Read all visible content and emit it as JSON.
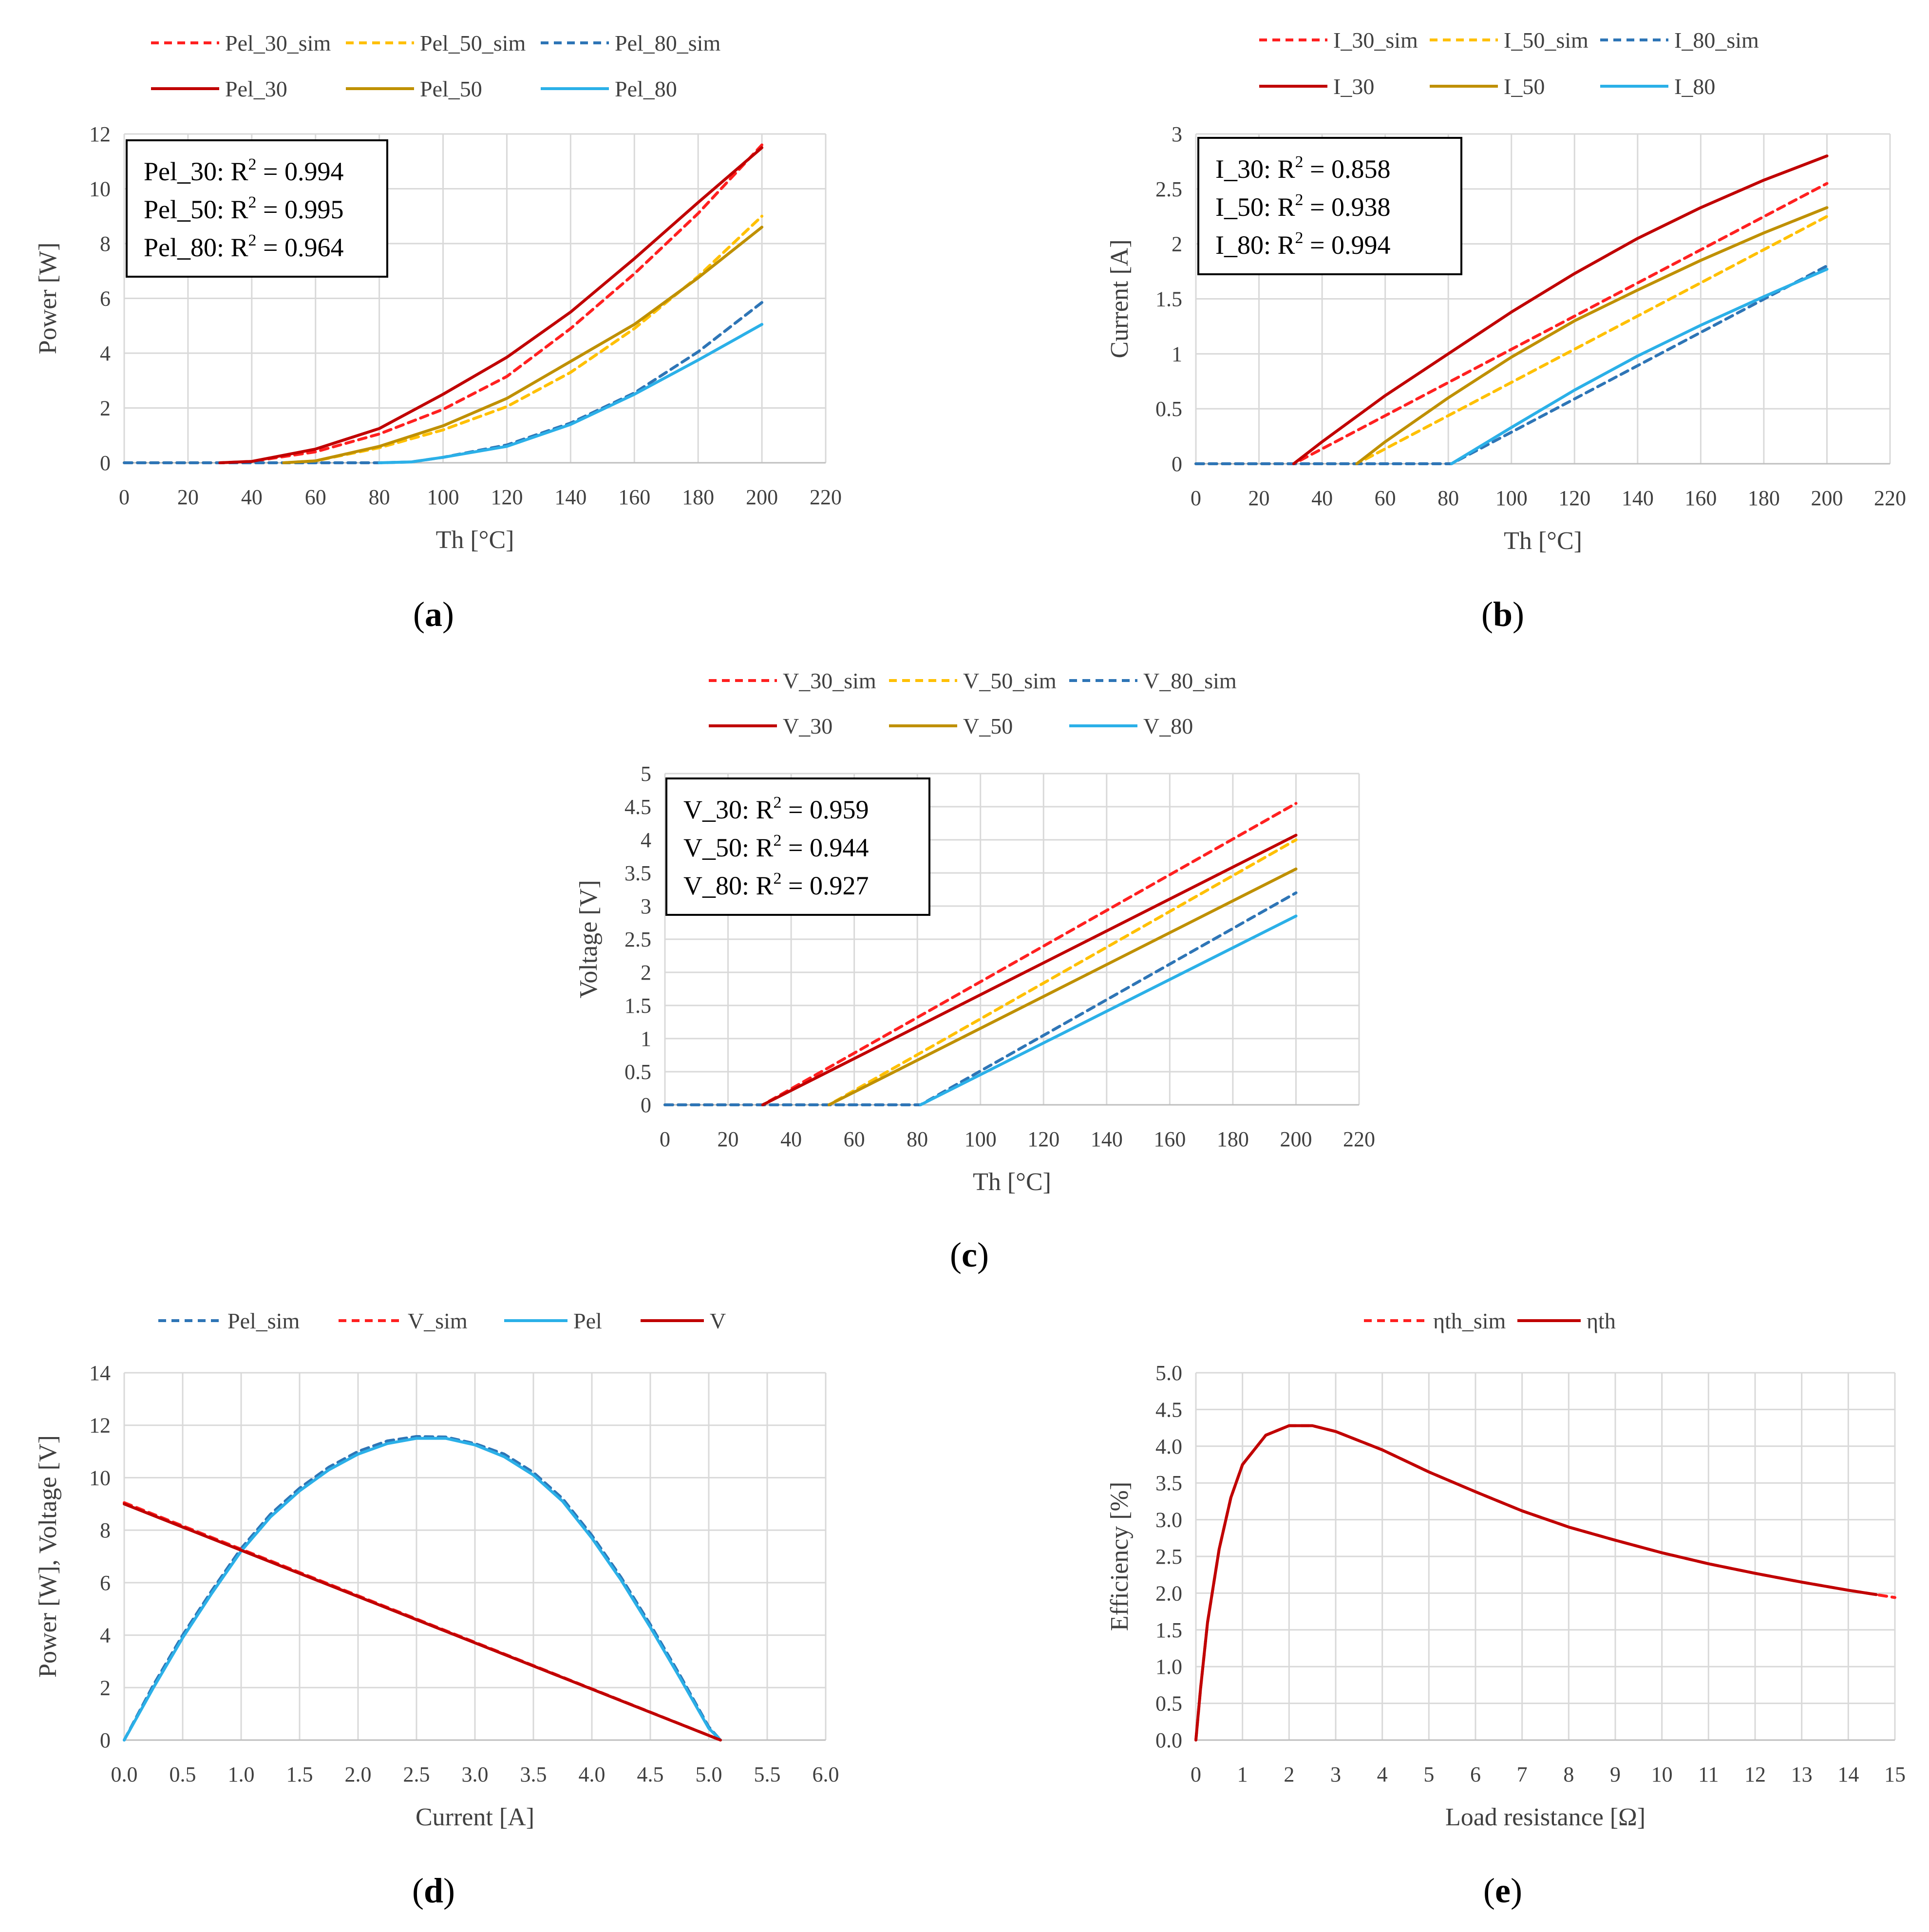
{
  "chart_data": [
    {
      "id": "a",
      "caption": "a",
      "type": "line",
      "xlabel": "Th [°C]",
      "ylabel": "Power [W]",
      "xlim": [
        0,
        220
      ],
      "ylim": [
        0,
        12
      ],
      "xticks": [
        "0",
        "20",
        "40",
        "60",
        "80",
        "100",
        "120",
        "140",
        "160",
        "180",
        "200",
        "220"
      ],
      "yticks": [
        "0",
        "2",
        "4",
        "6",
        "8",
        "10",
        "12"
      ],
      "grid": true,
      "legend_position": "top",
      "annotation": [
        {
          "label": "Pel_30: R",
          "sup": "2",
          "value": " = 0.994"
        },
        {
          "label": "Pel_50: R",
          "sup": "2",
          "value": " = 0.995"
        },
        {
          "label": "Pel_80: R",
          "sup": "2",
          "value": " = 0.964"
        }
      ],
      "series": [
        {
          "name": "Pel_30_sim",
          "color": "#ff2020",
          "style": "dashed",
          "x": [
            0,
            30,
            40,
            60,
            80,
            100,
            120,
            140,
            160,
            180,
            200
          ],
          "y": [
            0,
            0,
            0.05,
            0.4,
            1.05,
            1.95,
            3.15,
            4.9,
            6.9,
            9.1,
            11.6
          ]
        },
        {
          "name": "Pel_50_sim",
          "color": "#ffc000",
          "style": "dashed",
          "x": [
            0,
            50,
            60,
            80,
            100,
            120,
            140,
            160,
            180,
            200
          ],
          "y": [
            0,
            0,
            0.07,
            0.55,
            1.2,
            2.05,
            3.3,
            4.9,
            6.8,
            9.0
          ]
        },
        {
          "name": "Pel_80_sim",
          "color": "#2e75b6",
          "style": "dashed",
          "x": [
            0,
            80,
            90,
            100,
            120,
            140,
            160,
            180,
            200
          ],
          "y": [
            0,
            0,
            0.03,
            0.2,
            0.65,
            1.45,
            2.55,
            4.05,
            5.85
          ]
        },
        {
          "name": "Pel_30",
          "color": "#c00000",
          "style": "solid",
          "x": [
            30,
            40,
            60,
            80,
            100,
            120,
            140,
            160,
            180,
            200
          ],
          "y": [
            0,
            0.05,
            0.5,
            1.25,
            2.5,
            3.85,
            5.5,
            7.45,
            9.5,
            11.5
          ]
        },
        {
          "name": "Pel_50",
          "color": "#bf9000",
          "style": "solid",
          "x": [
            50,
            60,
            80,
            100,
            120,
            140,
            160,
            180,
            200
          ],
          "y": [
            0,
            0.07,
            0.6,
            1.35,
            2.35,
            3.7,
            5.05,
            6.75,
            8.6
          ]
        },
        {
          "name": "Pel_80",
          "color": "#2bb0e8",
          "style": "solid",
          "x": [
            80,
            90,
            100,
            120,
            140,
            160,
            180,
            200
          ],
          "y": [
            0,
            0.03,
            0.2,
            0.6,
            1.4,
            2.5,
            3.75,
            5.05
          ]
        }
      ]
    },
    {
      "id": "b",
      "caption": "b",
      "type": "line",
      "xlabel": "Th [°C]",
      "ylabel": "Current [A]",
      "xlim": [
        0,
        220
      ],
      "ylim": [
        0,
        3
      ],
      "xticks": [
        "0",
        "20",
        "40",
        "60",
        "80",
        "100",
        "120",
        "140",
        "160",
        "180",
        "200",
        "220"
      ],
      "yticks": [
        "0",
        "0.5",
        "1",
        "1.5",
        "2",
        "2.5",
        "3"
      ],
      "grid": true,
      "legend_position": "top",
      "annotation": [
        {
          "label": "I_30: R",
          "sup": "2",
          "value": " = 0.858"
        },
        {
          "label": "I_50: R",
          "sup": "2",
          "value": " = 0.938"
        },
        {
          "label": "I_80: R",
          "sup": "2",
          "value": " = 0.994"
        }
      ],
      "series": [
        {
          "name": "I_30_sim",
          "color": "#ff2020",
          "style": "dashed",
          "x": [
            0,
            31,
            200
          ],
          "y": [
            0,
            0,
            2.55
          ]
        },
        {
          "name": "I_50_sim",
          "color": "#ffc000",
          "style": "dashed",
          "x": [
            0,
            51,
            200
          ],
          "y": [
            0,
            0,
            2.25
          ]
        },
        {
          "name": "I_80_sim",
          "color": "#2e75b6",
          "style": "dashed",
          "x": [
            0,
            81,
            200
          ],
          "y": [
            0,
            0,
            1.8
          ]
        },
        {
          "name": "I_30",
          "color": "#c00000",
          "style": "solid",
          "x": [
            31,
            40,
            60,
            80,
            100,
            120,
            140,
            160,
            180,
            200
          ],
          "y": [
            0,
            0.2,
            0.62,
            1.0,
            1.38,
            1.73,
            2.05,
            2.33,
            2.58,
            2.8
          ]
        },
        {
          "name": "I_50",
          "color": "#bf9000",
          "style": "solid",
          "x": [
            51,
            60,
            80,
            100,
            120,
            140,
            160,
            180,
            200
          ],
          "y": [
            0,
            0.2,
            0.6,
            0.97,
            1.3,
            1.58,
            1.85,
            2.1,
            2.33
          ]
        },
        {
          "name": "I_80",
          "color": "#2bb0e8",
          "style": "solid",
          "x": [
            81,
            100,
            120,
            140,
            160,
            180,
            200
          ],
          "y": [
            0,
            0.33,
            0.67,
            0.98,
            1.26,
            1.52,
            1.77
          ]
        }
      ]
    },
    {
      "id": "c",
      "caption": "c",
      "type": "line",
      "xlabel": "Th [°C]",
      "ylabel": "Voltage [V]",
      "xlim": [
        0,
        220
      ],
      "ylim": [
        0,
        5
      ],
      "xticks": [
        "0",
        "20",
        "40",
        "60",
        "80",
        "100",
        "120",
        "140",
        "160",
        "180",
        "200",
        "220"
      ],
      "yticks": [
        "0",
        "0.5",
        "1",
        "1.5",
        "2",
        "2.5",
        "3",
        "3.5",
        "4",
        "4.5",
        "5"
      ],
      "grid": true,
      "legend_position": "top",
      "annotation": [
        {
          "label": "V_30: R",
          "sup": "2",
          "value": " = 0.959"
        },
        {
          "label": "V_50: R",
          "sup": "2",
          "value": " = 0.944"
        },
        {
          "label": "V_80: R",
          "sup": "2",
          "value": " = 0.927"
        }
      ],
      "series": [
        {
          "name": "V_30_sim",
          "color": "#ff2020",
          "style": "dashed",
          "x": [
            0,
            31,
            200
          ],
          "y": [
            0,
            0,
            4.55
          ]
        },
        {
          "name": "V_50_sim",
          "color": "#ffc000",
          "style": "dashed",
          "x": [
            0,
            52,
            200
          ],
          "y": [
            0,
            0,
            4.0
          ]
        },
        {
          "name": "V_80_sim",
          "color": "#2e75b6",
          "style": "dashed",
          "x": [
            0,
            81,
            200
          ],
          "y": [
            0,
            0,
            3.2
          ]
        },
        {
          "name": "V_30",
          "color": "#c00000",
          "style": "solid",
          "x": [
            31,
            200
          ],
          "y": [
            0,
            4.07
          ]
        },
        {
          "name": "V_50",
          "color": "#bf9000",
          "style": "solid",
          "x": [
            52,
            200
          ],
          "y": [
            0,
            3.56
          ]
        },
        {
          "name": "V_80",
          "color": "#2bb0e8",
          "style": "solid",
          "x": [
            81,
            200
          ],
          "y": [
            0,
            2.85
          ]
        }
      ]
    },
    {
      "id": "d",
      "caption": "d",
      "type": "line",
      "xlabel": "Current [A]",
      "ylabel": "Power [W], Voltage [V]",
      "xlim": [
        0,
        6
      ],
      "ylim": [
        0,
        14
      ],
      "xticks": [
        "0.0",
        "0.5",
        "1.0",
        "1.5",
        "2.0",
        "2.5",
        "3.0",
        "3.5",
        "4.0",
        "4.5",
        "5.0",
        "5.5",
        "6.0"
      ],
      "yticks": [
        "0",
        "2",
        "4",
        "6",
        "8",
        "10",
        "12",
        "14"
      ],
      "grid": true,
      "legend_position": "top",
      "annotation": [],
      "series": [
        {
          "name": "Pel_sim",
          "color": "#2e75b6",
          "style": "dashed",
          "x": [
            0,
            0.25,
            0.5,
            0.75,
            1.0,
            1.25,
            1.5,
            1.75,
            2.0,
            2.25,
            2.5,
            2.75,
            3.0,
            3.25,
            3.5,
            3.75,
            4.0,
            4.25,
            4.5,
            4.75,
            5.0,
            5.1
          ],
          "y": [
            0,
            2.1,
            4.0,
            5.7,
            7.3,
            8.6,
            9.6,
            10.4,
            11.0,
            11.4,
            11.57,
            11.55,
            11.3,
            10.9,
            10.2,
            9.2,
            7.8,
            6.2,
            4.4,
            2.5,
            0.5,
            0
          ]
        },
        {
          "name": "V_sim",
          "color": "#ff2020",
          "style": "dashed",
          "x": [
            0,
            5.1
          ],
          "y": [
            9.05,
            0
          ]
        },
        {
          "name": "Pel",
          "color": "#2bb0e8",
          "style": "solid",
          "x": [
            0,
            0.25,
            0.5,
            0.75,
            1.0,
            1.25,
            1.5,
            1.75,
            2.0,
            2.25,
            2.5,
            2.75,
            3.0,
            3.25,
            3.5,
            3.75,
            4.0,
            4.25,
            4.5,
            4.75,
            5.0,
            5.1
          ],
          "y": [
            0,
            2.0,
            3.9,
            5.6,
            7.2,
            8.5,
            9.5,
            10.3,
            10.9,
            11.3,
            11.5,
            11.5,
            11.25,
            10.8,
            10.1,
            9.1,
            7.7,
            6.1,
            4.3,
            2.4,
            0.45,
            0
          ]
        },
        {
          "name": "V",
          "color": "#c00000",
          "style": "solid",
          "x": [
            0,
            5.1
          ],
          "y": [
            9.0,
            0
          ]
        }
      ]
    },
    {
      "id": "e",
      "caption": "e",
      "type": "line",
      "xlabel": "Load resistance [Ω]",
      "ylabel": "Efficiency [%]",
      "xlim": [
        0,
        15
      ],
      "ylim": [
        0,
        5
      ],
      "xticks": [
        "0",
        "1",
        "2",
        "3",
        "4",
        "5",
        "6",
        "7",
        "8",
        "9",
        "10",
        "11",
        "12",
        "13",
        "14",
        "15"
      ],
      "yticks": [
        "0.0",
        "0.5",
        "1.0",
        "1.5",
        "2.0",
        "2.5",
        "3.0",
        "3.5",
        "4.0",
        "4.5",
        "5.0"
      ],
      "grid": true,
      "legend_position": "top",
      "annotation": [],
      "series": [
        {
          "name": "ηth_sim",
          "color": "#ff2020",
          "style": "dashed",
          "x": [
            0,
            0.1,
            0.25,
            0.5,
            0.75,
            1.0,
            1.5,
            2.0,
            2.5,
            3,
            4,
            5,
            6,
            7,
            8,
            9,
            10,
            11,
            12,
            13,
            14,
            15
          ],
          "y": [
            0,
            0.7,
            1.6,
            2.6,
            3.3,
            3.75,
            4.15,
            4.28,
            4.28,
            4.2,
            3.95,
            3.65,
            3.38,
            3.12,
            2.9,
            2.72,
            2.55,
            2.4,
            2.27,
            2.15,
            2.04,
            1.94
          ]
        },
        {
          "name": "ηth",
          "color": "#c00000",
          "style": "solid",
          "x": [
            0,
            0.1,
            0.25,
            0.5,
            0.75,
            1.0,
            1.5,
            2.0,
            2.5,
            3,
            4,
            5,
            6,
            7,
            8,
            9,
            10,
            11,
            12,
            13,
            14,
            14.6
          ],
          "y": [
            0,
            0.7,
            1.6,
            2.6,
            3.3,
            3.75,
            4.15,
            4.28,
            4.28,
            4.2,
            3.95,
            3.65,
            3.38,
            3.12,
            2.9,
            2.72,
            2.55,
            2.4,
            2.27,
            2.15,
            2.04,
            1.98
          ]
        }
      ]
    }
  ]
}
